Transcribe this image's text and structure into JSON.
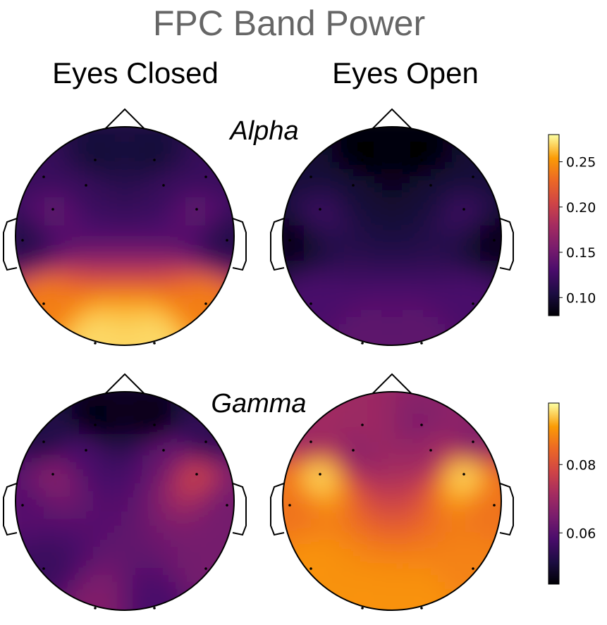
{
  "title": "FPC Band Power",
  "columns": [
    "Eyes Closed",
    "Eyes Open"
  ],
  "colors": {
    "text_title": "#666666",
    "colormap": "inferno"
  },
  "chart_data": [
    {
      "type": "heatmap",
      "subtype": "scalp-topomap",
      "band": "Alpha",
      "conditions": [
        "Eyes Closed",
        "Eyes Open"
      ],
      "colorbar": {
        "min": 0.08,
        "max": 0.28,
        "ticks": [
          0.1,
          0.15,
          0.2,
          0.25
        ],
        "tick_labels": [
          "0.10",
          "0.15",
          "0.20",
          "0.25"
        ]
      },
      "electrode_values": {
        "Eyes Closed": [
          0.1,
          0.1,
          0.12,
          0.12,
          0.12,
          0.12,
          0.14,
          0.14,
          0.11,
          0.11,
          0.24,
          0.24,
          0.27,
          0.27
        ],
        "Eyes Open": [
          0.08,
          0.08,
          0.1,
          0.1,
          0.1,
          0.1,
          0.12,
          0.12,
          0.09,
          0.09,
          0.13,
          0.13,
          0.14,
          0.14
        ]
      }
    },
    {
      "type": "heatmap",
      "subtype": "scalp-topomap",
      "band": "Gamma",
      "conditions": [
        "Eyes Closed",
        "Eyes Open"
      ],
      "colorbar": {
        "min": 0.045,
        "max": 0.098,
        "ticks": [
          0.06,
          0.08
        ],
        "tick_labels": [
          "0.06",
          "0.08"
        ]
      },
      "electrode_values": {
        "Eyes Closed": [
          0.046,
          0.046,
          0.052,
          0.054,
          0.058,
          0.062,
          0.066,
          0.076,
          0.06,
          0.064,
          0.056,
          0.064,
          0.066,
          0.058
        ],
        "Eyes Open": [
          0.07,
          0.066,
          0.07,
          0.066,
          0.068,
          0.07,
          0.095,
          0.095,
          0.086,
          0.086,
          0.09,
          0.088,
          0.09,
          0.09
        ]
      }
    }
  ]
}
